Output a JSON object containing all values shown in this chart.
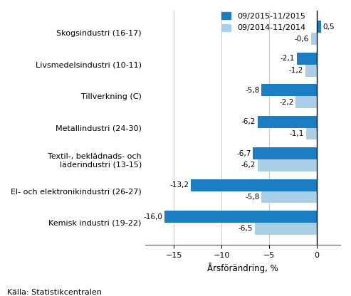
{
  "categories": [
    "Kemisk industri (19-22)",
    "El- och elektronikindustri (26-27)",
    "Textil-, beklädnads- och\nläderindustri (13-15)",
    "Metallindustri (24-30)",
    "Tillverkning (C)",
    "Livsmedelsindustri (10-11)",
    "Skogsindustri (16-17)"
  ],
  "values_2015": [
    -16.0,
    -13.2,
    -6.7,
    -6.2,
    -5.8,
    -2.1,
    0.5
  ],
  "values_2014": [
    -6.5,
    -5.8,
    -6.2,
    -1.1,
    -2.2,
    -1.2,
    -0.6
  ],
  "labels_2015": [
    "-16,0",
    "-13,2",
    "-6,7",
    "-6,2",
    "-5,8",
    "-2,1",
    "0,5"
  ],
  "labels_2014": [
    "-6,5",
    "-5,8",
    "-6,2",
    "-1,1",
    "-2,2",
    "-1,2",
    "-0,6"
  ],
  "color_2015": "#1B7EC2",
  "color_2014": "#AACFE8",
  "legend_2015": "09/2015-11/2015",
  "legend_2014": "09/2014-11/2014",
  "xlabel": "Årsförändring, %",
  "xlim": [
    -18,
    2.5
  ],
  "xticks": [
    -15,
    -10,
    -5,
    0
  ],
  "source": "Källa: Statistikcentralen",
  "bar_height": 0.38,
  "label_fontsize": 7.5,
  "tick_fontsize": 8,
  "legend_fontsize": 8,
  "xlabel_fontsize": 8.5,
  "source_fontsize": 8
}
